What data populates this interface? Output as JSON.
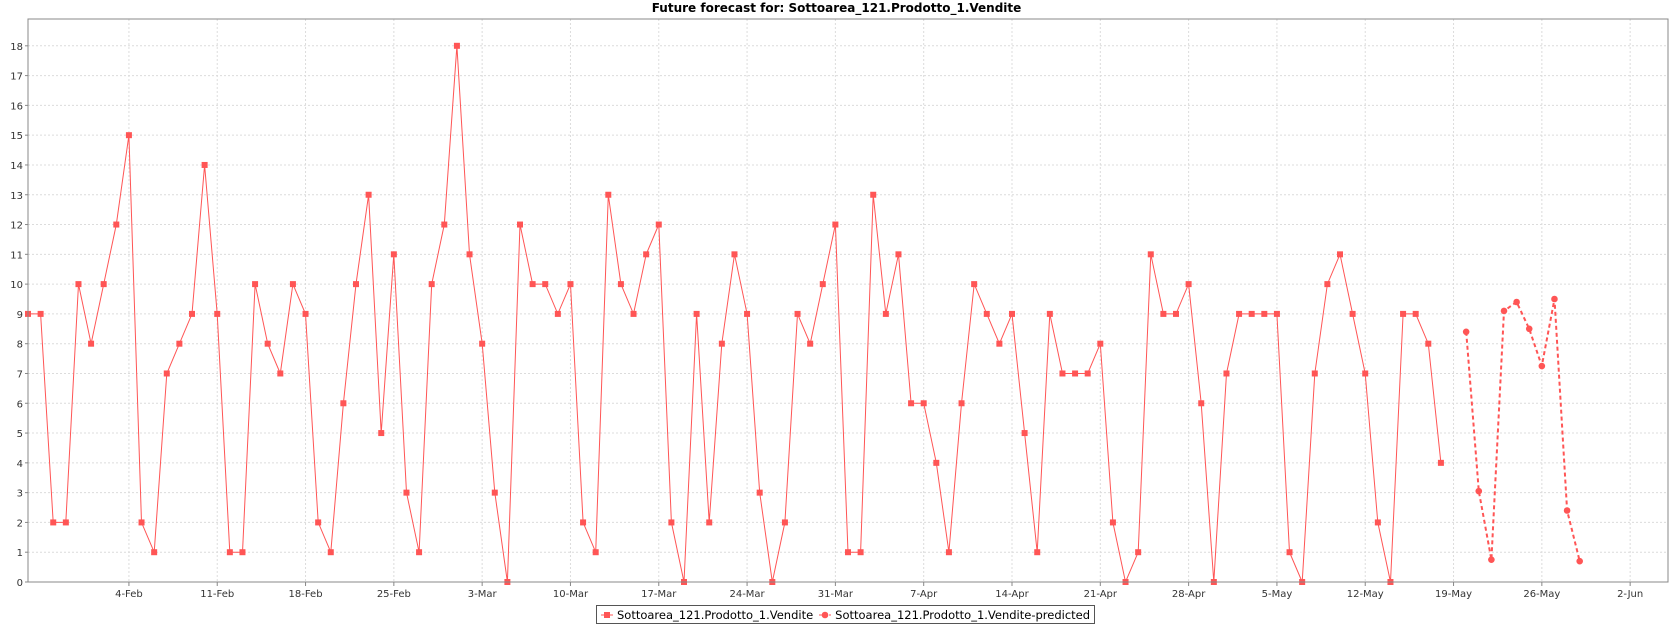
{
  "chart_data": {
    "type": "line",
    "title": "Future forecast for: Sottoarea_121.Prodotto_1.Vendite",
    "xlabel": "",
    "ylabel": "",
    "x_tick_labels": [
      "4-Feb",
      "11-Feb",
      "18-Feb",
      "25-Feb",
      "3-Mar",
      "10-Mar",
      "17-Mar",
      "24-Mar",
      "31-Mar",
      "7-Apr",
      "14-Apr",
      "21-Apr",
      "28-Apr",
      "5-May",
      "12-May",
      "19-May",
      "26-May",
      "2-Jun"
    ],
    "x_range": [
      "2018-01-27",
      "2018-06-06"
    ],
    "y_ticks": [
      0,
      1,
      2,
      3,
      4,
      5,
      6,
      7,
      8,
      9,
      10,
      11,
      12,
      13,
      14,
      15,
      16,
      17,
      18
    ],
    "ylim": [
      0,
      18.9
    ],
    "grid": true,
    "legend_position": "bottom",
    "series": [
      {
        "name": "Sottoarea_121.Prodotto_1.Vendite",
        "color": "#ff5555",
        "marker": "square",
        "dashed": false,
        "start_date": "2018-01-27",
        "values": [
          9,
          9,
          2,
          2,
          10,
          8,
          10,
          12,
          15,
          2,
          1,
          7,
          8,
          9,
          14,
          9,
          1,
          1,
          10,
          8,
          7,
          10,
          9,
          2,
          1,
          6,
          10,
          13,
          5,
          11,
          3,
          1,
          10,
          12,
          18,
          11,
          8,
          3,
          0,
          12,
          10,
          10,
          9,
          10,
          2,
          1,
          13,
          10,
          9,
          11,
          12,
          2,
          0,
          9,
          2,
          8,
          11,
          9,
          3,
          0,
          2,
          9,
          8,
          10,
          12,
          1,
          1,
          13,
          9,
          11,
          6,
          6,
          4,
          1,
          6,
          10,
          9,
          8,
          9,
          5,
          1,
          9,
          7,
          7,
          7,
          8,
          2,
          0,
          1,
          11,
          9,
          9,
          10,
          6,
          0,
          7,
          9,
          9,
          9,
          9,
          1,
          0,
          7,
          10,
          11,
          9,
          7,
          2,
          0,
          9,
          9,
          8,
          4
        ]
      },
      {
        "name": "Sottoarea_121.Prodotto_1.Vendite-predicted",
        "color": "#ff5555",
        "marker": "circle",
        "dashed": true,
        "start_date": "2018-05-21",
        "values": [
          8.4,
          3.05,
          0.75,
          9.1,
          9.4,
          8.5,
          7.25,
          9.5,
          2.4,
          0.7
        ]
      }
    ]
  }
}
